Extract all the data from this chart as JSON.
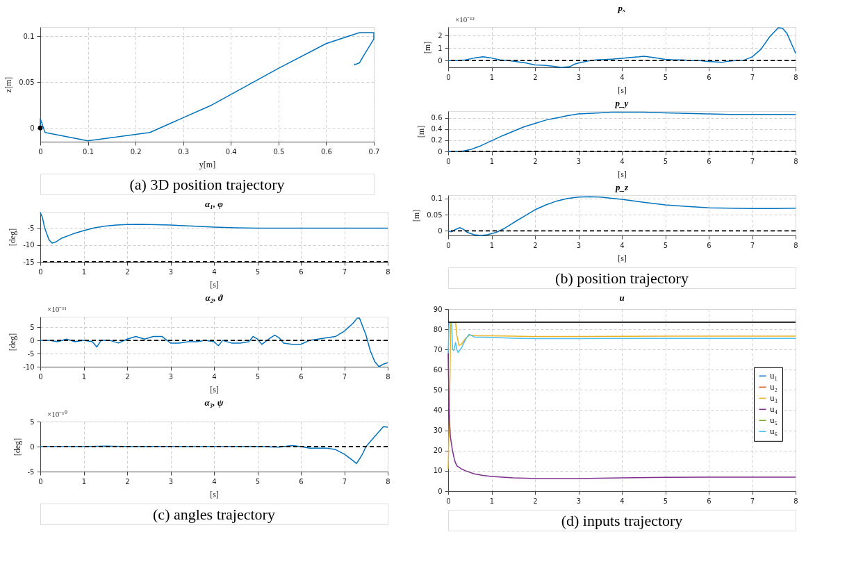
{
  "chart_data": [
    {
      "type": "line",
      "xlabel": "y[m]",
      "ylabel": "z[m]",
      "xlim": [
        0,
        0.7
      ],
      "ylim": [
        -0.015,
        0.11
      ],
      "xticks": [
        0,
        0.1,
        0.2,
        0.3,
        0.4,
        0.5,
        0.6,
        0.7
      ],
      "yticks": [
        0,
        0.05,
        0.1
      ],
      "grid": true,
      "series": [
        {
          "color": "#0072bd",
          "x": [
            0,
            0.0,
            0.01,
            0.1,
            0.23,
            0.36,
            0.5,
            0.6,
            0.67,
            0.7,
            0.7,
            0.68,
            0.67,
            0.66,
            0.66
          ],
          "values": [
            0,
            0.01,
            -0.005,
            -0.014,
            -0.005,
            0.025,
            0.065,
            0.092,
            0.104,
            0.104,
            0.097,
            0.08,
            0.071,
            0.069,
            0.07
          ]
        },
        {
          "type": "scatter",
          "color": "#000000",
          "x": [
            0
          ],
          "values": [
            0
          ]
        }
      ]
    },
    {
      "type": "other",
      "title": "(a) 3D position trajectory"
    },
    {
      "type": "line",
      "title": "pₓ",
      "xlabel": "[s]",
      "ylabel": "[m]",
      "xlim": [
        0,
        8
      ],
      "ylim": [
        -0.55,
        2.7
      ],
      "xticks": [
        0,
        1,
        2,
        3,
        4,
        5,
        6,
        7,
        8
      ],
      "yticks": [
        0,
        1,
        2
      ],
      "grid": true,
      "annotations": [
        "×10⁻¹²"
      ],
      "ref_lines": [
        {
          "axis": "y",
          "value": 0,
          "color": "#000000",
          "line_style": "dashed"
        }
      ],
      "series": [
        {
          "color": "#0072bd",
          "x": [
            0,
            0.2,
            0.4,
            0.6,
            0.8,
            1.0,
            1.2,
            1.4,
            1.6,
            1.8,
            2.0,
            2.2,
            2.4,
            2.6,
            2.8,
            2.9,
            3.0,
            3.2,
            3.4,
            3.6,
            3.8,
            4.0,
            4.2,
            4.4,
            4.5,
            4.6,
            4.8,
            5.0,
            5.2,
            5.4,
            5.6,
            5.8,
            6.0,
            6.2,
            6.3,
            6.4,
            6.6,
            6.8,
            7.0,
            7.2,
            7.4,
            7.6,
            7.7,
            7.8,
            8.0
          ],
          "values": [
            0,
            0,
            0.05,
            0.2,
            0.3,
            0.2,
            0.05,
            0,
            -0.1,
            -0.2,
            -0.35,
            -0.38,
            -0.45,
            -0.55,
            -0.5,
            -0.3,
            -0.2,
            -0.05,
            0.05,
            0.08,
            0.12,
            0.18,
            0.25,
            0.3,
            0.35,
            0.3,
            0.2,
            0.1,
            0.05,
            0.05,
            0,
            0,
            -0.08,
            -0.12,
            -0.15,
            -0.08,
            0,
            0.02,
            0.3,
            0.9,
            1.9,
            2.65,
            2.6,
            2.2,
            0.6
          ]
        }
      ]
    },
    {
      "type": "line",
      "title": "p_y",
      "xlabel": "[s]",
      "ylabel": "[m]",
      "xlim": [
        0,
        8
      ],
      "ylim": [
        0,
        0.72
      ],
      "xticks": [
        0,
        1,
        2,
        3,
        4,
        5,
        6,
        7,
        8
      ],
      "yticks": [
        0,
        0.2,
        0.4,
        0.6
      ],
      "grid": true,
      "ref_lines": [
        {
          "axis": "y",
          "value": 0,
          "color": "#000000",
          "line_style": "dashed"
        }
      ],
      "series": [
        {
          "color": "#0072bd",
          "x": [
            0,
            0.3,
            0.5,
            0.75,
            1,
            1.25,
            1.5,
            1.75,
            2,
            2.25,
            2.5,
            2.75,
            3,
            3.25,
            3.5,
            3.75,
            4,
            4.5,
            5,
            5.5,
            6,
            6.5,
            7,
            7.5,
            8
          ],
          "values": [
            0,
            0,
            0.03,
            0.1,
            0.19,
            0.28,
            0.36,
            0.44,
            0.5,
            0.56,
            0.6,
            0.64,
            0.67,
            0.68,
            0.69,
            0.7,
            0.7,
            0.7,
            0.69,
            0.68,
            0.67,
            0.66,
            0.66,
            0.66,
            0.66
          ]
        }
      ]
    },
    {
      "type": "line",
      "title": "p_z",
      "xlabel": "[s]",
      "ylabel": "[m]",
      "xlim": [
        0,
        8
      ],
      "ylim": [
        -0.014,
        0.11
      ],
      "xticks": [
        0,
        1,
        2,
        3,
        4,
        5,
        6,
        7,
        8
      ],
      "yticks": [
        0,
        0.05,
        0.1
      ],
      "grid": true,
      "ref_lines": [
        {
          "axis": "y",
          "value": 0,
          "color": "#000000",
          "line_style": "dashed"
        }
      ],
      "series": [
        {
          "color": "#0072bd",
          "x": [
            0,
            0.07,
            0.15,
            0.27,
            0.35,
            0.45,
            0.6,
            0.75,
            0.9,
            1.1,
            1.3,
            1.5,
            1.75,
            2,
            2.25,
            2.5,
            2.75,
            3,
            3.25,
            3.5,
            4,
            4.5,
            5,
            5.5,
            6,
            6.5,
            7,
            7.5,
            8
          ],
          "values": [
            0,
            -0.003,
            0.003,
            0.01,
            0.005,
            -0.005,
            -0.012,
            -0.014,
            -0.012,
            -0.005,
            0.008,
            0.025,
            0.045,
            0.065,
            0.08,
            0.092,
            0.1,
            0.104,
            0.105,
            0.104,
            0.097,
            0.088,
            0.08,
            0.075,
            0.071,
            0.07,
            0.069,
            0.069,
            0.07
          ]
        }
      ]
    },
    {
      "type": "other",
      "title": "(b) position trajectory"
    },
    {
      "type": "line",
      "title": "α₁, φ",
      "xlabel": "[s]",
      "ylabel": "[deg]",
      "xlim": [
        0,
        8
      ],
      "ylim": [
        -15,
        -0.3
      ],
      "xticks": [
        0,
        1,
        2,
        3,
        4,
        5,
        6,
        7,
        8
      ],
      "yticks": [
        -15,
        -10,
        -5
      ],
      "grid": true,
      "ref_lines": [
        {
          "axis": "y",
          "value": -15,
          "color": "#000000",
          "line_style": "dashed"
        }
      ],
      "series": [
        {
          "color": "#0072bd",
          "x": [
            0,
            0.05,
            0.1,
            0.2,
            0.27,
            0.35,
            0.5,
            0.75,
            1,
            1.25,
            1.5,
            1.75,
            2,
            2.25,
            2.5,
            3,
            3.5,
            4,
            4.5,
            5,
            6,
            7,
            8
          ],
          "values": [
            -0.5,
            -2,
            -5,
            -8.5,
            -9.5,
            -9.2,
            -8,
            -6.8,
            -5.8,
            -5,
            -4.5,
            -4.2,
            -4.05,
            -4,
            -4.05,
            -4.2,
            -4.5,
            -4.8,
            -5,
            -5.1,
            -5.1,
            -5.1,
            -5.1
          ]
        }
      ]
    },
    {
      "type": "line",
      "title": "α₂, ϑ",
      "xlabel": "[s]",
      "ylabel": "[deg]",
      "xlim": [
        0,
        8
      ],
      "ylim": [
        -10,
        9
      ],
      "xticks": [
        0,
        1,
        2,
        3,
        4,
        5,
        6,
        7,
        8
      ],
      "yticks": [
        -10,
        -5,
        0,
        5
      ],
      "grid": true,
      "annotations": [
        "×10⁻¹¹"
      ],
      "ref_lines": [
        {
          "axis": "y",
          "value": 0,
          "color": "#000000",
          "line_style": "dashed"
        }
      ],
      "series": [
        {
          "color": "#0072bd",
          "x": [
            0,
            0.2,
            0.4,
            0.6,
            0.8,
            1.0,
            1.2,
            1.3,
            1.4,
            1.6,
            1.8,
            2.0,
            2.2,
            2.4,
            2.6,
            2.8,
            3.0,
            3.2,
            3.4,
            3.6,
            3.8,
            4.0,
            4.1,
            4.2,
            4.4,
            4.6,
            4.8,
            4.9,
            5.0,
            5.1,
            5.3,
            5.4,
            5.5,
            5.6,
            5.8,
            6.0,
            6.2,
            6.4,
            6.6,
            6.8,
            7.0,
            7.2,
            7.3,
            7.35,
            7.5,
            7.6,
            7.7,
            7.8,
            7.9,
            8.0
          ],
          "values": [
            0,
            0,
            -0.5,
            0.5,
            -0.5,
            0,
            -0.5,
            -2.5,
            0,
            0,
            -1,
            0.5,
            1.5,
            0.5,
            1.5,
            1.5,
            -1,
            -1,
            -0.5,
            -0.5,
            0,
            -0.5,
            -2,
            0,
            -1,
            -1,
            -0.5,
            1.5,
            0.5,
            -1.5,
            1,
            2,
            1,
            -1,
            -1.5,
            -1.5,
            0,
            0.5,
            1,
            1.5,
            3.5,
            6.5,
            8.5,
            8.5,
            2,
            -4,
            -8,
            -10,
            -9,
            -8.5
          ]
        }
      ]
    },
    {
      "type": "line",
      "title": "α₃, ψ",
      "xlabel": "[s]",
      "ylabel": "[deg]",
      "xlim": [
        0,
        8
      ],
      "ylim": [
        -5,
        5
      ],
      "xticks": [
        0,
        1,
        2,
        3,
        4,
        5,
        6,
        7,
        8
      ],
      "yticks": [
        -5,
        0,
        5
      ],
      "grid": true,
      "annotations": [
        "×10⁻¹⁰"
      ],
      "ref_lines": [
        {
          "axis": "y",
          "value": 0,
          "color": "#000000",
          "line_style": "dashed"
        }
      ],
      "series": [
        {
          "color": "#0072bd",
          "x": [
            0,
            1,
            1.5,
            2,
            3,
            4,
            5,
            5.5,
            5.8,
            6,
            6.2,
            6.6,
            6.8,
            7,
            7.2,
            7.28,
            7.4,
            7.5,
            7.7,
            7.9,
            8
          ],
          "values": [
            0,
            0,
            0.1,
            0,
            0,
            0,
            0,
            -0.1,
            0.2,
            0,
            -0.3,
            -0.3,
            -0.6,
            -1.5,
            -2.8,
            -3.4,
            -1.8,
            0,
            2,
            4,
            3.9
          ]
        }
      ]
    },
    {
      "type": "other",
      "title": "(c) angles trajectory"
    },
    {
      "type": "line",
      "title": "u",
      "xlim": [
        0,
        8
      ],
      "ylim": [
        0,
        90
      ],
      "xticks": [
        0,
        1,
        2,
        3,
        4,
        5,
        6,
        7,
        8
      ],
      "yticks": [
        0,
        10,
        20,
        30,
        40,
        50,
        60,
        70,
        80,
        90
      ],
      "grid": true,
      "legend": "right",
      "ref_lines": [
        {
          "axis": "y",
          "value": 83.5,
          "color": "#000000",
          "line_style": "solid"
        }
      ],
      "series": [
        {
          "name": "u₁",
          "color": "#0072bd"
        },
        {
          "name": "u₂",
          "color": "#d95319"
        },
        {
          "name": "u₃",
          "color": "#edb120",
          "x": [
            0,
            0.03,
            0.06,
            0.17,
            0.2,
            0.25,
            0.3,
            0.4,
            0.5,
            0.6,
            0.8,
            1,
            1.5,
            2,
            3,
            4,
            5,
            6,
            7,
            8
          ],
          "values": [
            11,
            40,
            83.5,
            83.5,
            77,
            72,
            72.5,
            75.5,
            77.2,
            76.9,
            76.8,
            76.8,
            76.6,
            76.4,
            76.4,
            76.5,
            76.6,
            76.6,
            76.6,
            76.6
          ]
        },
        {
          "name": "u₄",
          "color": "#7e2f8e",
          "x": [
            0,
            0.02,
            0.05,
            0.1,
            0.15,
            0.2,
            0.3,
            0.4,
            0.6,
            0.8,
            1,
            1.5,
            2,
            3,
            4,
            5,
            6,
            7,
            8
          ],
          "values": [
            68,
            40,
            27,
            20,
            15,
            12.5,
            11,
            10,
            8.5,
            7.7,
            7.2,
            6.5,
            6.2,
            6.2,
            6.5,
            6.8,
            6.9,
            6.9,
            6.9
          ]
        },
        {
          "name": "u₅",
          "color": "#77ac30"
        },
        {
          "name": "u₆",
          "color": "#4dbeee",
          "x": [
            0,
            0.02,
            0.08,
            0.1,
            0.13,
            0.17,
            0.2,
            0.23,
            0.3,
            0.4,
            0.48,
            0.6,
            1,
            1.5,
            2,
            3,
            4,
            5,
            6,
            7,
            8
          ],
          "values": [
            68,
            83.5,
            83.5,
            70,
            69.5,
            73.5,
            70,
            68.5,
            70.5,
            75,
            77.5,
            76.2,
            76,
            75.6,
            75.4,
            75.4,
            75.5,
            75.5,
            75.5,
            75.5,
            75.5
          ]
        }
      ]
    },
    {
      "type": "other",
      "title": "(d) inputs trajectory"
    }
  ]
}
